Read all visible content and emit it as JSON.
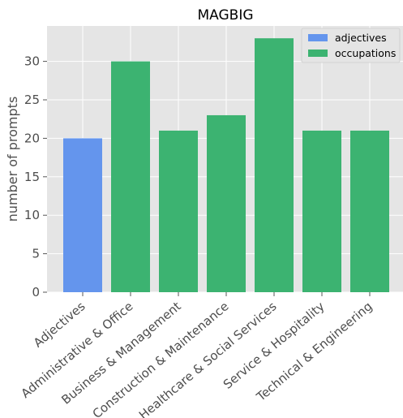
{
  "chart_data": {
    "type": "bar",
    "title": "MAGBIG",
    "xlabel": "",
    "ylabel": "number of prompts",
    "ylim": [
      0,
      34.6
    ],
    "yticks": [
      0,
      5,
      10,
      15,
      20,
      25,
      30
    ],
    "grid": true,
    "legend_position": "top-right",
    "categories": [
      "Adjectives",
      "Administrative & Office",
      "Business & Management",
      "Construction & Maintenance",
      "Healthcare & Social Services",
      "Service & Hospitality",
      "Technical & Engineering"
    ],
    "values": [
      20,
      30,
      21,
      23,
      33,
      21,
      21
    ],
    "bar_group": [
      "adjectives",
      "occupations",
      "occupations",
      "occupations",
      "occupations",
      "occupations",
      "occupations"
    ],
    "series": [
      {
        "name": "adjectives",
        "color": "#6495ED"
      },
      {
        "name": "occupations",
        "color": "#3CB371"
      }
    ],
    "background_color": "#E5E5E5",
    "grid_color": "#FFFFFF"
  }
}
